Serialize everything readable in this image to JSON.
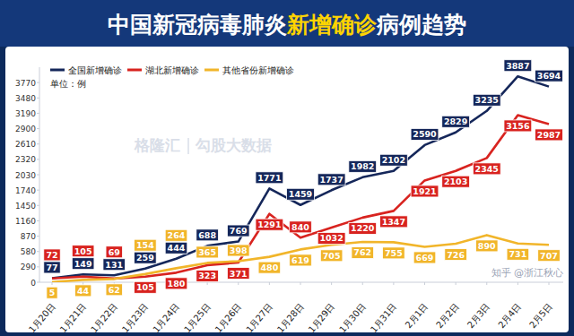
{
  "chart_data": {
    "type": "line",
    "title": "中国新冠病毒肺炎新增确诊病例趋势",
    "annotations": [
      "单位：例",
      "格隆汇",
      "勾股大数据",
      "知乎 @浙江秋心"
    ],
    "categories": [
      "1月20日",
      "1月21日",
      "1月22日",
      "1月23日",
      "1月24日",
      "1月25日",
      "1月26日",
      "1月27日",
      "1月28日",
      "1月29日",
      "1月30日",
      "1月31日",
      "2月1日",
      "2月2日",
      "2月3日",
      "2月4日",
      "2月5日"
    ],
    "series": [
      {
        "name": "全国新增确诊",
        "color": "#15275a",
        "values": [
          77,
          149,
          131,
          259,
          444,
          688,
          769,
          1771,
          1459,
          1737,
          1982,
          2102,
          2590,
          2829,
          3235,
          3887,
          3694
        ]
      },
      {
        "name": "湖北新增确诊",
        "color": "#d8231f",
        "values": [
          72,
          105,
          69,
          105,
          180,
          323,
          371,
          1291,
          840,
          1032,
          1220,
          1347,
          1921,
          2103,
          2345,
          3156,
          2987
        ]
      },
      {
        "name": "其他省份新增确诊",
        "color": "#f1b52a",
        "values": [
          5,
          44,
          62,
          154,
          264,
          365,
          398,
          480,
          619,
          705,
          762,
          755,
          669,
          726,
          890,
          731,
          707
        ]
      }
    ],
    "ylim": [
      0,
      4060
    ],
    "yticks": [
      0,
      290,
      580,
      870,
      1160,
      1450,
      1740,
      2030,
      2320,
      2610,
      2900,
      3190,
      3480,
      3770
    ],
    "grid": false,
    "legend": "top-left",
    "data_labels": true
  }
}
